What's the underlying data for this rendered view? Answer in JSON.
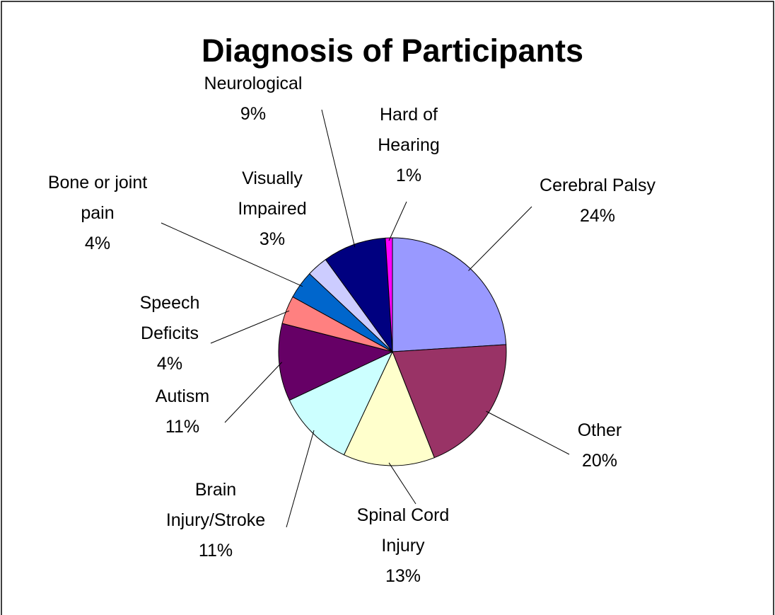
{
  "chart_data": {
    "type": "pie",
    "title": "Diagnosis of Participants",
    "categories": [
      "Cerebral Palsy",
      "Other",
      "Spinal Cord Injury",
      "Brain Injury/Stroke",
      "Autism",
      "Speech Deficits",
      "Bone or joint pain",
      "Visually Impaired",
      "Neurological",
      "Hard of Hearing"
    ],
    "values": [
      24,
      20,
      13,
      11,
      11,
      4,
      4,
      3,
      9,
      1
    ],
    "value_labels": [
      "24%",
      "20%",
      "13%",
      "11%",
      "11%",
      "4%",
      "4%",
      "3%",
      "9%",
      "1%"
    ],
    "colors": [
      "#9999ff",
      "#993366",
      "#ffffcc",
      "#ccffff",
      "#660066",
      "#ff8080",
      "#0066cc",
      "#ccccff",
      "#000080",
      "#ff00ff"
    ]
  }
}
